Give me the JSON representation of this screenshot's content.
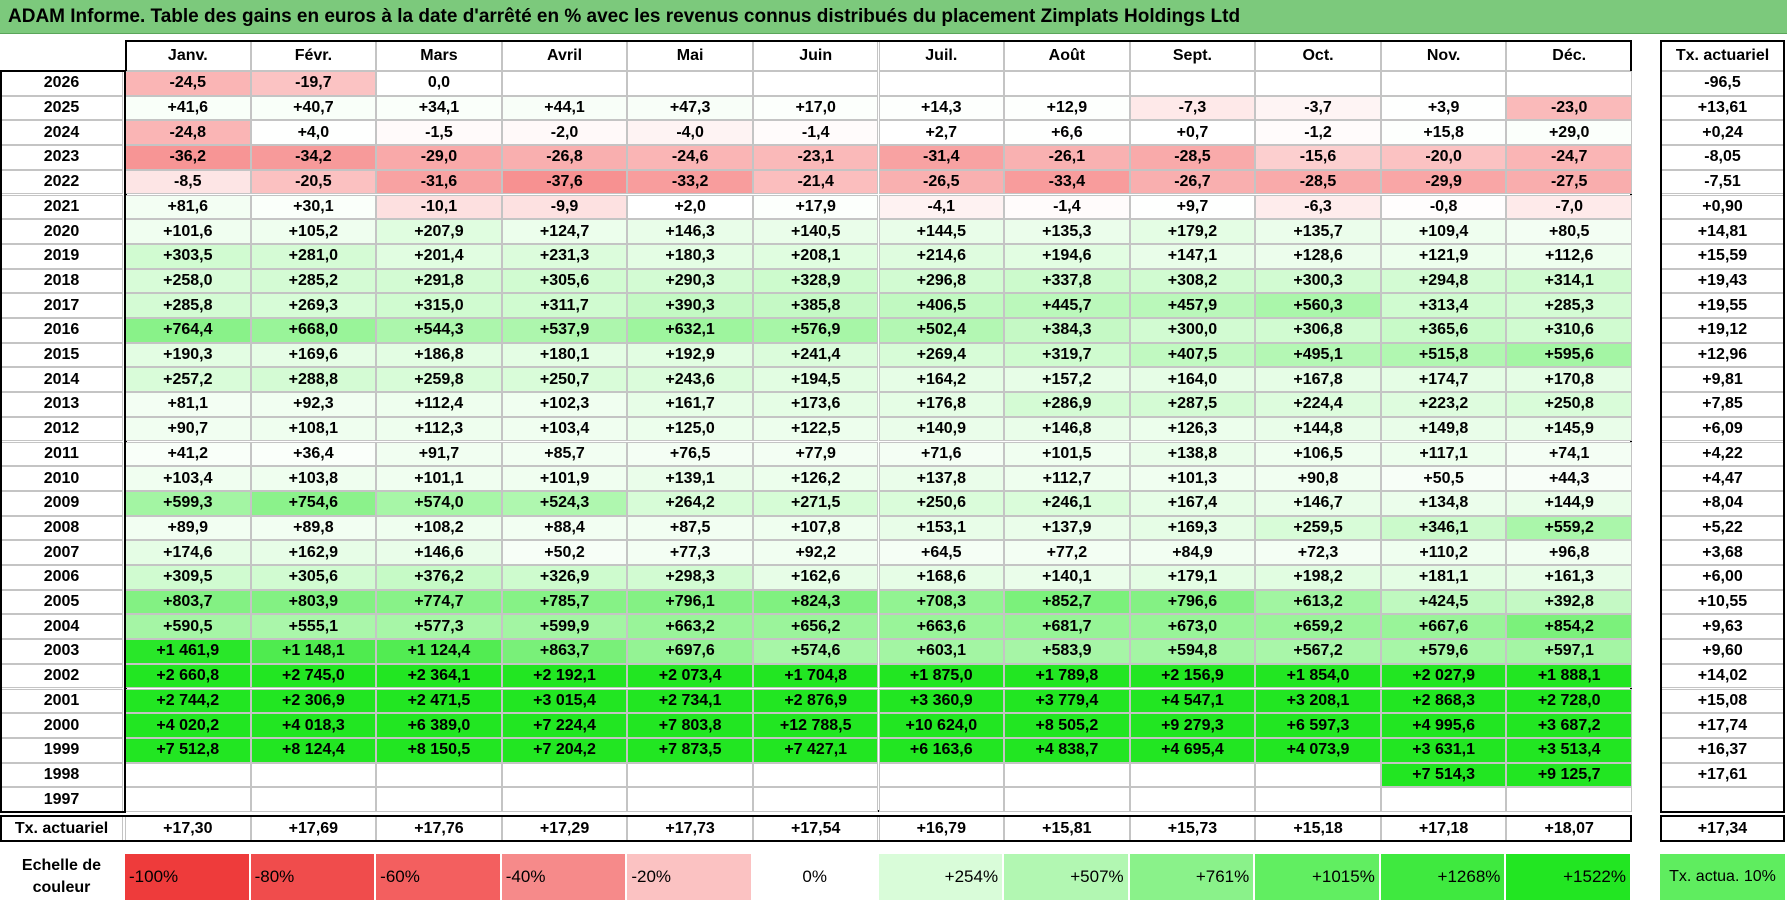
{
  "title": "ADAM Informe. Table des gains en euros à la date d'arrêté en % avec les revenus connus distribués du placement Zimplats Holdings Ltd",
  "table": {
    "columns": [
      "Janv.",
      "Févr.",
      "Mars",
      "Avril",
      "Mai",
      "Juin",
      "Juil.",
      "Août",
      "Sept.",
      "Oct.",
      "Nov.",
      "Déc."
    ],
    "total_header": "Tx. actuariel",
    "rows": [
      {
        "year": 2026,
        "cells": [
          "-24,5",
          "-19,7",
          "0,0",
          null,
          null,
          null,
          null,
          null,
          null,
          null,
          null,
          null
        ],
        "total": "-96,5"
      },
      {
        "year": 2025,
        "cells": [
          "+41,6",
          "+40,7",
          "+34,1",
          "+44,1",
          "+47,3",
          "+17,0",
          "+14,3",
          "+12,9",
          "-7,3",
          "-3,7",
          "+3,9",
          "-23,0"
        ],
        "total": "+13,61"
      },
      {
        "year": 2024,
        "cells": [
          "-24,8",
          "+4,0",
          "-1,5",
          "-2,0",
          "-4,0",
          "-1,4",
          "+2,7",
          "+6,6",
          "+0,7",
          "-1,2",
          "+15,8",
          "+29,0"
        ],
        "total": "+0,24"
      },
      {
        "year": 2023,
        "cells": [
          "-36,2",
          "-34,2",
          "-29,0",
          "-26,8",
          "-24,6",
          "-23,1",
          "-31,4",
          "-26,1",
          "-28,5",
          "-15,6",
          "-20,0",
          "-24,7"
        ],
        "total": "-8,05"
      },
      {
        "year": 2022,
        "cells": [
          "-8,5",
          "-20,5",
          "-31,6",
          "-37,6",
          "-33,2",
          "-21,4",
          "-26,5",
          "-33,4",
          "-26,7",
          "-28,5",
          "-29,9",
          "-27,5"
        ],
        "total": "-7,51"
      },
      {
        "year": 2021,
        "cells": [
          "+81,6",
          "+30,1",
          "-10,1",
          "-9,9",
          "+2,0",
          "+17,9",
          "-4,1",
          "-1,4",
          "+9,7",
          "-6,3",
          "-0,8",
          "-7,0"
        ],
        "total": "+0,90"
      },
      {
        "year": 2020,
        "cells": [
          "+101,6",
          "+105,2",
          "+207,9",
          "+124,7",
          "+146,3",
          "+140,5",
          "+144,5",
          "+135,3",
          "+179,2",
          "+135,7",
          "+109,4",
          "+80,5"
        ],
        "total": "+14,81"
      },
      {
        "year": 2019,
        "cells": [
          "+303,5",
          "+281,0",
          "+201,4",
          "+231,3",
          "+180,3",
          "+208,1",
          "+214,6",
          "+194,6",
          "+147,1",
          "+128,6",
          "+121,9",
          "+112,6"
        ],
        "total": "+15,59"
      },
      {
        "year": 2018,
        "cells": [
          "+258,0",
          "+285,2",
          "+291,8",
          "+305,6",
          "+290,3",
          "+328,9",
          "+296,8",
          "+337,8",
          "+308,2",
          "+300,3",
          "+294,8",
          "+314,1"
        ],
        "total": "+19,43"
      },
      {
        "year": 2017,
        "cells": [
          "+285,8",
          "+269,3",
          "+315,0",
          "+311,7",
          "+390,3",
          "+385,8",
          "+406,5",
          "+445,7",
          "+457,9",
          "+560,3",
          "+313,4",
          "+285,3"
        ],
        "total": "+19,55"
      },
      {
        "year": 2016,
        "cells": [
          "+764,4",
          "+668,0",
          "+544,3",
          "+537,9",
          "+632,1",
          "+576,9",
          "+502,4",
          "+384,3",
          "+300,0",
          "+306,8",
          "+365,6",
          "+310,6"
        ],
        "total": "+19,12"
      },
      {
        "year": 2015,
        "cells": [
          "+190,3",
          "+169,6",
          "+186,8",
          "+180,1",
          "+192,9",
          "+241,4",
          "+269,4",
          "+319,7",
          "+407,5",
          "+495,1",
          "+515,8",
          "+595,6"
        ],
        "total": "+12,96"
      },
      {
        "year": 2014,
        "cells": [
          "+257,2",
          "+288,8",
          "+259,8",
          "+250,7",
          "+243,6",
          "+194,5",
          "+164,2",
          "+157,2",
          "+164,0",
          "+167,8",
          "+174,7",
          "+170,8"
        ],
        "total": "+9,81"
      },
      {
        "year": 2013,
        "cells": [
          "+81,1",
          "+92,3",
          "+112,4",
          "+102,3",
          "+161,7",
          "+173,6",
          "+176,8",
          "+286,9",
          "+287,5",
          "+224,4",
          "+223,2",
          "+250,8"
        ],
        "total": "+7,85"
      },
      {
        "year": 2012,
        "cells": [
          "+90,7",
          "+108,1",
          "+112,3",
          "+103,4",
          "+125,0",
          "+122,5",
          "+140,9",
          "+146,8",
          "+126,3",
          "+144,8",
          "+149,8",
          "+145,9"
        ],
        "total": "+6,09"
      },
      {
        "year": 2011,
        "cells": [
          "+41,2",
          "+36,4",
          "+91,7",
          "+85,7",
          "+76,5",
          "+77,9",
          "+71,6",
          "+101,5",
          "+138,8",
          "+106,5",
          "+117,1",
          "+74,1"
        ],
        "total": "+4,22"
      },
      {
        "year": 2010,
        "cells": [
          "+103,4",
          "+103,8",
          "+101,1",
          "+101,9",
          "+139,1",
          "+126,2",
          "+137,8",
          "+112,7",
          "+101,3",
          "+90,8",
          "+50,5",
          "+44,3"
        ],
        "total": "+4,47"
      },
      {
        "year": 2009,
        "cells": [
          "+599,3",
          "+754,6",
          "+574,0",
          "+524,3",
          "+264,2",
          "+271,5",
          "+250,6",
          "+246,1",
          "+167,4",
          "+146,7",
          "+134,8",
          "+144,9"
        ],
        "total": "+8,04"
      },
      {
        "year": 2008,
        "cells": [
          "+89,9",
          "+89,8",
          "+108,2",
          "+88,4",
          "+87,5",
          "+107,8",
          "+153,1",
          "+137,9",
          "+169,3",
          "+259,5",
          "+346,1",
          "+559,2"
        ],
        "total": "+5,22"
      },
      {
        "year": 2007,
        "cells": [
          "+174,6",
          "+162,9",
          "+146,6",
          "+50,2",
          "+77,3",
          "+92,2",
          "+64,5",
          "+77,2",
          "+84,9",
          "+72,3",
          "+110,2",
          "+96,8"
        ],
        "total": "+3,68"
      },
      {
        "year": 2006,
        "cells": [
          "+309,5",
          "+305,6",
          "+376,2",
          "+326,9",
          "+298,3",
          "+162,6",
          "+168,6",
          "+140,1",
          "+179,1",
          "+198,2",
          "+181,1",
          "+161,3"
        ],
        "total": "+6,00"
      },
      {
        "year": 2005,
        "cells": [
          "+803,7",
          "+803,9",
          "+774,7",
          "+785,7",
          "+796,1",
          "+824,3",
          "+708,3",
          "+852,7",
          "+796,6",
          "+613,2",
          "+424,5",
          "+392,8"
        ],
        "total": "+10,55"
      },
      {
        "year": 2004,
        "cells": [
          "+590,5",
          "+555,1",
          "+577,3",
          "+599,9",
          "+663,2",
          "+656,2",
          "+663,6",
          "+681,7",
          "+673,0",
          "+659,2",
          "+667,6",
          "+854,2"
        ],
        "total": "+9,63"
      },
      {
        "year": 2003,
        "cells": [
          "+1 461,9",
          "+1 148,1",
          "+1 124,4",
          "+863,7",
          "+697,6",
          "+574,6",
          "+603,1",
          "+583,9",
          "+594,8",
          "+567,2",
          "+579,6",
          "+597,1"
        ],
        "total": "+9,60"
      },
      {
        "year": 2002,
        "cells": [
          "+2 660,8",
          "+2 745,0",
          "+2 364,1",
          "+2 192,1",
          "+2 073,4",
          "+1 704,8",
          "+1 875,0",
          "+1 789,8",
          "+2 156,9",
          "+1 854,0",
          "+2 027,9",
          "+1 888,1"
        ],
        "total": "+14,02"
      },
      {
        "year": 2001,
        "cells": [
          "+2 744,2",
          "+2 306,9",
          "+2 471,5",
          "+3 015,4",
          "+2 734,1",
          "+2 876,9",
          "+3 360,9",
          "+3 779,4",
          "+4 547,1",
          "+3 208,1",
          "+2 868,3",
          "+2 728,0"
        ],
        "total": "+15,08"
      },
      {
        "year": 2000,
        "cells": [
          "+4 020,2",
          "+4 018,3",
          "+6 389,0",
          "+7 224,4",
          "+7 803,8",
          "+12 788,5",
          "+10 624,0",
          "+8 505,2",
          "+9 279,3",
          "+6 597,3",
          "+4 995,6",
          "+3 687,2"
        ],
        "total": "+17,74"
      },
      {
        "year": 1999,
        "cells": [
          "+7 512,8",
          "+8 124,4",
          "+8 150,5",
          "+7 204,2",
          "+7 873,5",
          "+7 427,1",
          "+6 163,6",
          "+4 838,7",
          "+4 695,4",
          "+4 073,9",
          "+3 631,1",
          "+3 513,4"
        ],
        "total": "+16,37"
      },
      {
        "year": 1998,
        "cells": [
          null,
          null,
          null,
          null,
          null,
          null,
          null,
          null,
          null,
          null,
          "+7 514,3",
          "+9 125,7"
        ],
        "total": "+17,61"
      },
      {
        "year": 1997,
        "cells": [
          null,
          null,
          null,
          null,
          null,
          null,
          null,
          null,
          null,
          null,
          null,
          null
        ],
        "total": null
      }
    ],
    "footer": {
      "label": "Tx. actuariel",
      "cells": [
        "+17,30",
        "+17,69",
        "+17,76",
        "+17,29",
        "+17,73",
        "+17,54",
        "+16,79",
        "+15,81",
        "+15,73",
        "+15,18",
        "+17,18",
        "+18,07"
      ],
      "total": "+17,34"
    }
  },
  "legend": {
    "label": "Echelle de couleur",
    "stops": [
      {
        "label": "-100%",
        "color": "#ee3b3b"
      },
      {
        "label": "-80%",
        "color": "#f04c4c"
      },
      {
        "label": "-60%",
        "color": "#f35f5f"
      },
      {
        "label": "-40%",
        "color": "#f68a8a"
      },
      {
        "label": "-20%",
        "color": "#fbc2c2"
      },
      {
        "label": "0%",
        "color": "#ffffff"
      },
      {
        "label": "+254%",
        "color": "#d9fcd9"
      },
      {
        "label": "+507%",
        "color": "#b2f7b2"
      },
      {
        "label": "+761%",
        "color": "#8af28a"
      },
      {
        "label": "+1015%",
        "color": "#61ee61"
      },
      {
        "label": "+1268%",
        "color": "#3fe93f"
      },
      {
        "label": "+1522%",
        "color": "#22e622"
      }
    ],
    "reference": {
      "label": "Tx. actua. 10%",
      "color": "#5fed5f"
    }
  }
}
